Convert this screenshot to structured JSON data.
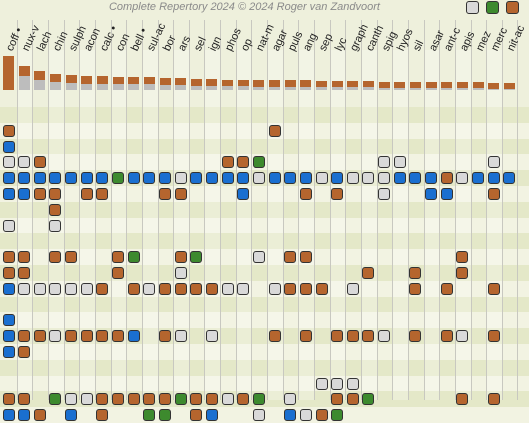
{
  "header": {
    "title": "Complete Repertory 2024 © 2024 Roger van Zandvoort"
  },
  "filters": [
    {
      "name": "filter-all-icon",
      "color": "#d9d9d9"
    },
    {
      "name": "filter-green-icon",
      "color": "#3d8a2e"
    },
    {
      "name": "filter-brown-icon",
      "color": "#b5652e"
    }
  ],
  "colors": {
    "0": "#d9d9d9",
    "1": "#b5652e",
    "2": "#1a6fd0",
    "3": "#3d8a2e",
    "bar_top": "#b5652e",
    "bar_rest": "#bdbdbd"
  },
  "remedies": [
    {
      "label": "coff •",
      "score": 0.86
    },
    {
      "label": "nux-v",
      "score": 0.6
    },
    {
      "label": "lach",
      "score": 0.47
    },
    {
      "label": "chin",
      "score": 0.4
    },
    {
      "label": "sulph",
      "score": 0.37
    },
    {
      "label": "acon",
      "score": 0.35
    },
    {
      "label": "calc •",
      "score": 0.35
    },
    {
      "label": "con",
      "score": 0.33
    },
    {
      "label": "bell •",
      "score": 0.33
    },
    {
      "label": "sul-ac",
      "score": 0.32
    },
    {
      "label": "bor",
      "score": 0.3
    },
    {
      "label": "ars",
      "score": 0.3
    },
    {
      "label": "sel",
      "score": 0.28
    },
    {
      "label": "ign",
      "score": 0.28
    },
    {
      "label": "phos",
      "score": 0.26
    },
    {
      "label": "op",
      "score": 0.26
    },
    {
      "label": "nat-m",
      "score": 0.25
    },
    {
      "label": "agar",
      "score": 0.25
    },
    {
      "label": "puls",
      "score": 0.24
    },
    {
      "label": "ang",
      "score": 0.24
    },
    {
      "label": "sep",
      "score": 0.23
    },
    {
      "label": "lyc",
      "score": 0.23
    },
    {
      "label": "graph",
      "score": 0.22
    },
    {
      "label": "canth",
      "score": 0.22
    },
    {
      "label": "spig",
      "score": 0.21
    },
    {
      "label": "hyos",
      "score": 0.21
    },
    {
      "label": "sil",
      "score": 0.2
    },
    {
      "label": "asar",
      "score": 0.2
    },
    {
      "label": "ant-c",
      "score": 0.2
    },
    {
      "label": "apis",
      "score": 0.19
    },
    {
      "label": "mez",
      "score": 0.19
    },
    {
      "label": "merc",
      "score": 0.18
    },
    {
      "label": "nit-ac",
      "score": 0.18
    }
  ],
  "rows": [
    "..................................",
    "1................1...............",
    "2................................",
    "001...........113.......00.....0.",
    "2222222322202222022202000222102222",
    "2211.11...11...2...1.1..0..22..1..",
    "...1.............................",
    "0..0.............................",
    ".................................",
    "11.11..13..13...0.11.........1.....",
    "11.....1...0...........1..1..1.....",
    "2000001.10111100.0111.0...1.1..1.",
    ".................................",
    "2................................",
    "211011112.10.0...1.1.1110.1.10.1.0",
    "21...............................",
    ".................................",
    "....................000..........",
    "11.30011111311013.0..113.....1.1.3",
    "221.2.1..33.12..0.2013...........0"
  ]
}
